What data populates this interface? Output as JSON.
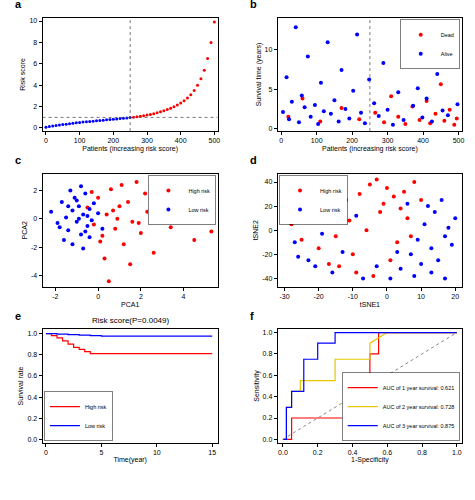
{
  "chart_data": [
    {
      "panel": "a",
      "type": "scatter",
      "marker": "circle",
      "x_label": "Patients (increasing risk score)",
      "y_label": "Risk score",
      "xlim": [
        -10,
        510
      ],
      "xticks": [
        0,
        100,
        200,
        300,
        400,
        500
      ],
      "ylim": [
        -0.3,
        10.3
      ],
      "yticks": [
        0,
        2,
        4,
        6,
        8,
        10
      ],
      "reference_lines": {
        "x": 250,
        "y": 0.98
      },
      "series": [
        {
          "color": "blue",
          "x": [
            0,
            10,
            20,
            30,
            40,
            50,
            60,
            70,
            80,
            90,
            100,
            110,
            120,
            130,
            140,
            150,
            160,
            170,
            180,
            190,
            200,
            210,
            220,
            230,
            240,
            250
          ],
          "values": [
            0.05,
            0.12,
            0.18,
            0.22,
            0.27,
            0.31,
            0.35,
            0.39,
            0.43,
            0.47,
            0.5,
            0.54,
            0.57,
            0.6,
            0.63,
            0.66,
            0.69,
            0.72,
            0.75,
            0.78,
            0.81,
            0.84,
            0.87,
            0.9,
            0.93,
            0.97
          ]
        },
        {
          "color": "red",
          "x": [
            260,
            270,
            280,
            290,
            300,
            310,
            320,
            330,
            340,
            350,
            360,
            370,
            380,
            390,
            400,
            410,
            420,
            430,
            440,
            450,
            460,
            470,
            480,
            490,
            500
          ],
          "values": [
            1.0,
            1.04,
            1.09,
            1.14,
            1.2,
            1.26,
            1.33,
            1.41,
            1.5,
            1.6,
            1.71,
            1.83,
            1.97,
            2.13,
            2.32,
            2.54,
            2.8,
            3.1,
            3.5,
            4.0,
            4.6,
            5.4,
            6.5,
            8.0,
            9.9
          ]
        }
      ]
    },
    {
      "panel": "b",
      "type": "scatter",
      "marker": "circle",
      "legend": "upper right",
      "x_label": "Patients (increasing risk score)",
      "y_label": "Survival time (years)",
      "xlim": [
        -10,
        510
      ],
      "xticks": [
        0,
        100,
        200,
        300,
        400,
        500
      ],
      "ylim": [
        -0.3,
        14
      ],
      "yticks": [
        0,
        5,
        10
      ],
      "reference_lines": {
        "x": 250
      },
      "series": [
        {
          "name": "Dead",
          "color": "red",
          "x": [
            20,
            60,
            110,
            170,
            220,
            265,
            290,
            310,
            330,
            350,
            370,
            390,
            410,
            420,
            435,
            450,
            460,
            475,
            488,
            495
          ],
          "values": [
            1.5,
            3.8,
            0.9,
            2.6,
            1.2,
            2.0,
            0.8,
            4.1,
            1.5,
            0.6,
            2.8,
            1.1,
            3.5,
            0.7,
            1.9,
            5.6,
            1.0,
            2.4,
            0.5,
            1.3
          ]
        },
        {
          "name": "Alive",
          "color": "blue",
          "x": [
            5,
            15,
            22,
            30,
            41,
            50,
            58,
            66,
            75,
            83,
            95,
            104,
            112,
            120,
            131,
            140,
            150,
            162,
            170,
            181,
            192,
            203,
            214,
            225,
            236,
            248,
            262,
            275,
            288,
            300,
            315,
            330,
            345,
            360,
            372,
            385,
            398,
            410,
            425,
            440,
            455,
            470,
            485,
            497
          ],
          "values": [
            2.1,
            6.5,
            1.2,
            3.4,
            12.8,
            0.8,
            4.2,
            2.7,
            9.1,
            1.5,
            3.0,
            0.6,
            5.8,
            2.2,
            10.9,
            1.9,
            3.6,
            0.9,
            7.4,
            2.5,
            1.3,
            4.8,
            11.9,
            2.0,
            0.7,
            6.2,
            3.2,
            1.6,
            8.3,
            2.4,
            0.5,
            4.6,
            1.1,
            12.5,
            2.9,
            5.1,
            1.4,
            3.8,
            0.9,
            6.9,
            2.3,
            1.7,
            9.6,
            3.1
          ]
        }
      ]
    },
    {
      "panel": "c",
      "type": "scatter",
      "marker": "circle",
      "legend": "upper right",
      "x_label": "PCA1",
      "y_label": "PCA2",
      "xlim": [
        -2.6,
        5.6
      ],
      "xticks": [
        -2,
        0,
        2,
        4
      ],
      "ylim": [
        -4.8,
        3.2
      ],
      "yticks": [
        -4,
        -2,
        0,
        2
      ],
      "series": [
        {
          "name": "High risk",
          "color": "red",
          "x": [
            -0.5,
            -0.2,
            0.0,
            0.2,
            0.4,
            0.6,
            0.8,
            1.0,
            1.2,
            1.4,
            1.6,
            1.8,
            2.0,
            2.3,
            2.6,
            3.0,
            3.4,
            3.9,
            4.5,
            5.3,
            0.3,
            0.9,
            1.5,
            -0.3,
            0.5,
            1.1,
            2.2,
            0.1,
            0.7,
            1.9
          ],
          "values": [
            0.8,
            -0.4,
            1.5,
            -1.2,
            0.3,
            2.1,
            -0.7,
            0.9,
            -1.8,
            1.2,
            -0.2,
            2.6,
            -1.0,
            0.5,
            -2.4,
            1.0,
            -0.6,
            0.2,
            -1.5,
            -0.9,
            -2.8,
            0.0,
            -3.2,
            1.9,
            -4.4,
            2.4,
            1.8,
            -1.6,
            0.6,
            -0.3
          ]
        },
        {
          "name": "Low risk",
          "color": "blue",
          "x": [
            -2.2,
            -1.9,
            -1.7,
            -1.5,
            -1.4,
            -1.2,
            -1.1,
            -1.0,
            -0.9,
            -0.8,
            -0.7,
            -0.6,
            -0.5,
            -0.4,
            -0.3,
            -1.6,
            -1.3,
            -0.9,
            -0.6,
            -0.2,
            -1.8,
            -1.2,
            -0.8,
            -0.4,
            0.0,
            -1.0,
            -0.7,
            -1.4,
            0.2,
            -0.5
          ],
          "values": [
            0.5,
            -0.3,
            1.2,
            0.1,
            -0.8,
            0.6,
            1.5,
            -0.2,
            0.9,
            -1.1,
            0.3,
            1.8,
            -0.5,
            0.7,
            -0.1,
            -1.5,
            2.0,
            0.0,
            -0.9,
            1.1,
            -0.6,
            -1.8,
            2.3,
            -1.3,
            0.4,
            1.3,
            -2.1,
            0.9,
            -0.7,
            0.2
          ]
        }
      ]
    },
    {
      "panel": "d",
      "type": "scatter",
      "marker": "circle",
      "legend": "upper left",
      "x_label": "tSNE1",
      "y_label": "tSNE2",
      "xlim": [
        -32,
        22
      ],
      "xticks": [
        -30,
        -20,
        -10,
        0,
        10,
        20
      ],
      "ylim": [
        -47,
        47
      ],
      "yticks": [
        -40,
        -20,
        0,
        20,
        40
      ],
      "series": [
        {
          "name": "High risk",
          "color": "red",
          "x": [
            -28,
            -25,
            -22,
            -20,
            -18,
            -15,
            -12,
            -10,
            -8,
            -5,
            -3,
            0,
            2,
            4,
            6,
            8,
            -6,
            -2,
            1,
            3,
            -14,
            -24,
            -9,
            5,
            -17,
            -1,
            7,
            -11,
            10,
            -4
          ],
          "values": [
            5,
            -8,
            12,
            -15,
            20,
            -5,
            25,
            -20,
            30,
            38,
            42,
            35,
            28,
            18,
            10,
            40,
            0,
            15,
            -25,
            -10,
            -30,
            18,
            -35,
            32,
            -28,
            22,
            -5,
            8,
            25,
            -38
          ]
        },
        {
          "name": "Low risk",
          "color": "blue",
          "x": [
            -27,
            -23,
            -19,
            -16,
            -13,
            -7,
            -3,
            1,
            4,
            7,
            9,
            11,
            13,
            15,
            17,
            19,
            20,
            12,
            8,
            14,
            16,
            10,
            18,
            -21,
            -9,
            3,
            6,
            -26,
            13,
            17
          ],
          "values": [
            -10,
            -25,
            -3,
            -35,
            -18,
            -40,
            -30,
            -40,
            -32,
            -20,
            -8,
            5,
            -15,
            -25,
            -5,
            -12,
            10,
            20,
            -38,
            15,
            25,
            -28,
            2,
            -30,
            12,
            -18,
            22,
            -22,
            -35,
            -40
          ]
        }
      ]
    },
    {
      "panel": "e",
      "type": "line",
      "line_style": "step",
      "legend": "lower left",
      "title": "Risk score(P=0.0049)",
      "x_label": "Time(year)",
      "y_label": "Survival rate",
      "xlim": [
        -0.3,
        15.5
      ],
      "xticks": [
        0,
        5,
        10,
        15
      ],
      "ylim": [
        -0.03,
        1.04
      ],
      "yticks": [
        {
          "value": 0,
          "label": "0.0"
        },
        {
          "value": 0.2,
          "label": "0.2"
        },
        {
          "value": 0.4,
          "label": "0.4"
        },
        {
          "value": 0.6,
          "label": "0.6"
        },
        {
          "value": 0.8,
          "label": "0.8"
        },
        {
          "value": 1,
          "label": "1.0"
        }
      ],
      "series": [
        {
          "name": "High risk",
          "color": "red",
          "x": [
            0,
            0.5,
            1,
            1.5,
            2,
            2.5,
            3,
            3.5,
            4,
            5,
            15
          ],
          "values": [
            1,
            0.98,
            0.96,
            0.93,
            0.9,
            0.87,
            0.85,
            0.83,
            0.81,
            0.81,
            0.81
          ]
        },
        {
          "name": "Low risk",
          "color": "blue",
          "x": [
            0,
            1,
            2,
            3,
            4,
            5,
            15
          ],
          "values": [
            1,
            0.995,
            0.99,
            0.985,
            0.98,
            0.975,
            0.975
          ]
        }
      ]
    },
    {
      "panel": "f",
      "type": "line",
      "line_style": "solid",
      "legend": "lower right",
      "x_label": "1-Specificity",
      "y_label": "Sensitivity",
      "xlim": [
        -0.03,
        1.03
      ],
      "xticks": [
        {
          "value": 0,
          "label": "0.0"
        },
        {
          "value": 0.2,
          "label": "0.2"
        },
        {
          "value": 0.4,
          "label": "0.4"
        },
        {
          "value": 0.6,
          "label": "0.6"
        },
        {
          "value": 0.8,
          "label": "0.8"
        },
        {
          "value": 1,
          "label": "1.0"
        }
      ],
      "ylim": [
        -0.03,
        1.03
      ],
      "yticks": [
        {
          "value": 0,
          "label": "0.0"
        },
        {
          "value": 0.2,
          "label": "0.2"
        },
        {
          "value": 0.4,
          "label": "0.4"
        },
        {
          "value": 0.6,
          "label": "0.6"
        },
        {
          "value": 0.8,
          "label": "0.8"
        },
        {
          "value": 1,
          "label": "1.0"
        }
      ],
      "diagonal": {
        "x": [
          0,
          1
        ],
        "values": [
          0,
          1
        ]
      },
      "series": [
        {
          "name": "AUC of 1 year survival: 0.621",
          "color": "red",
          "x": [
            0,
            0.05,
            0.05,
            0.5,
            0.5,
            0.55,
            0.55,
            1
          ],
          "values": [
            0,
            0,
            0.2,
            0.2,
            0.8,
            0.8,
            1.0,
            1.0
          ]
        },
        {
          "name": "AUC of 2 year survival: 0.728",
          "color": "#e6c700",
          "x": [
            0,
            0.02,
            0.02,
            0.05,
            0.05,
            0.1,
            0.1,
            0.3,
            0.3,
            0.5,
            0.5,
            0.6,
            1
          ],
          "values": [
            0,
            0,
            0.3,
            0.3,
            0.45,
            0.45,
            0.55,
            0.55,
            0.75,
            0.75,
            0.9,
            1.0,
            1.0
          ]
        },
        {
          "name": "AUC of 3 year survival: 0.875",
          "color": "blue",
          "x": [
            0,
            0.02,
            0.02,
            0.05,
            0.05,
            0.12,
            0.12,
            0.2,
            0.2,
            0.3,
            0.3,
            0.5,
            1
          ],
          "values": [
            0,
            0,
            0.3,
            0.3,
            0.45,
            0.45,
            0.75,
            0.75,
            0.9,
            0.9,
            1.0,
            1.0,
            1.0
          ]
        }
      ]
    }
  ]
}
